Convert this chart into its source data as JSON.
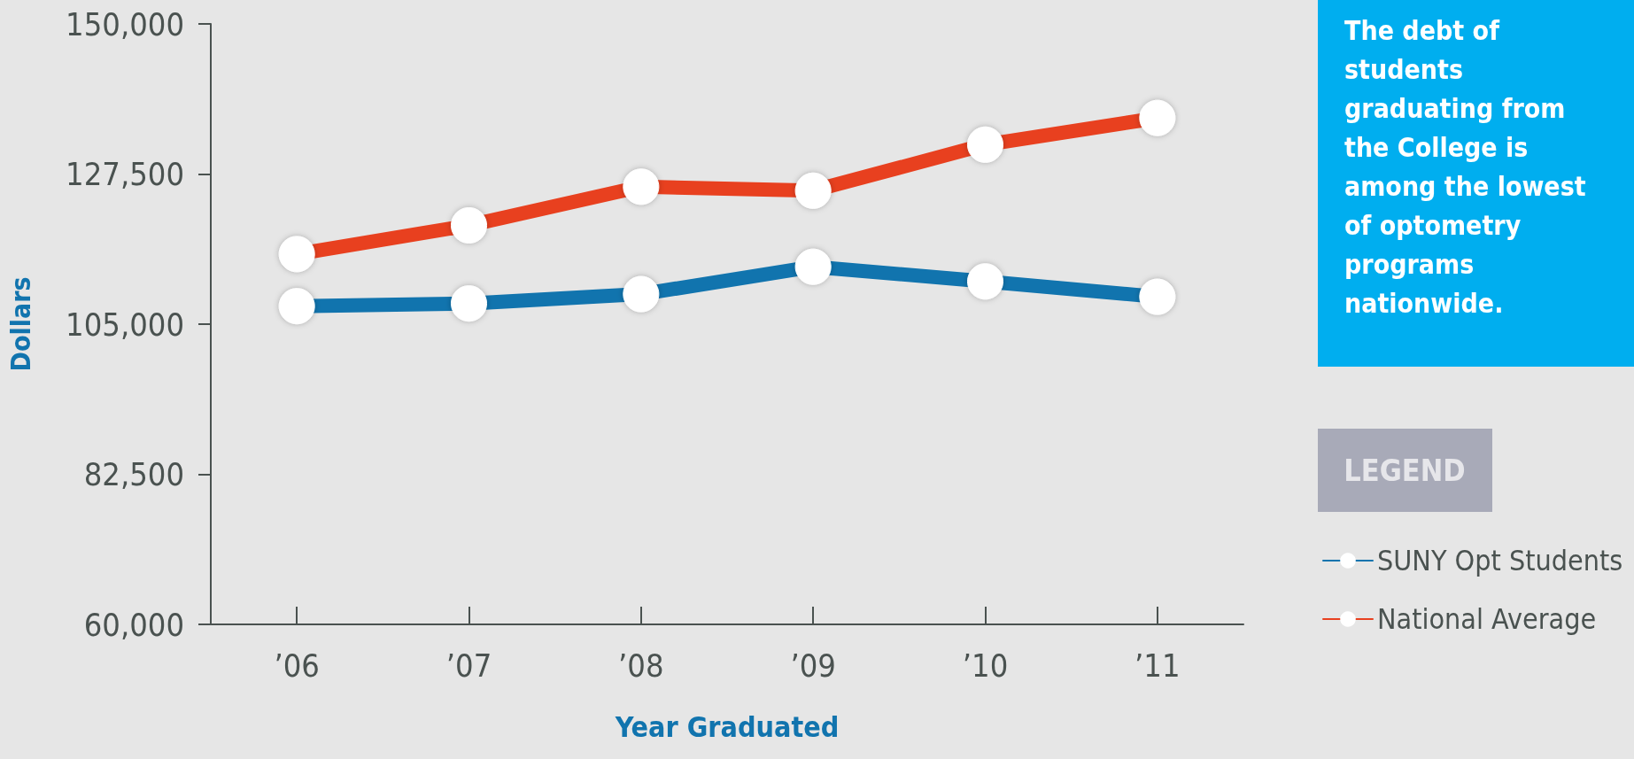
{
  "chart_data": {
    "type": "line",
    "xlabel": "Year Graduated",
    "ylabel": "Dollars",
    "legend_title": "LEGEND",
    "annotations": [
      "The debt of students graduating from the College is among the lowest of optometry programs nationwide."
    ],
    "categories": [
      "’06",
      "’07",
      "’08",
      "’09",
      "’10",
      "’11"
    ],
    "series": [
      {
        "name": "SUNY Opt Students",
        "color": "#1174ae",
        "values": [
          107700,
          108100,
          109500,
          113600,
          111400,
          109100
        ]
      },
      {
        "name": "National Average",
        "color": "#e8401f",
        "values": [
          115500,
          119800,
          125600,
          125000,
          131900,
          135900
        ]
      }
    ],
    "ylim": [
      60000,
      150000
    ],
    "yticks": [
      {
        "value": 60000,
        "label": "60,000"
      },
      {
        "value": 82500,
        "label": "82,500"
      },
      {
        "value": 105000,
        "label": "105,000"
      },
      {
        "value": 127500,
        "label": "127,500"
      },
      {
        "value": 150000,
        "label": "150,000"
      }
    ],
    "grid": false,
    "legend": "right",
    "marker": "circle",
    "line_style": "solid"
  }
}
